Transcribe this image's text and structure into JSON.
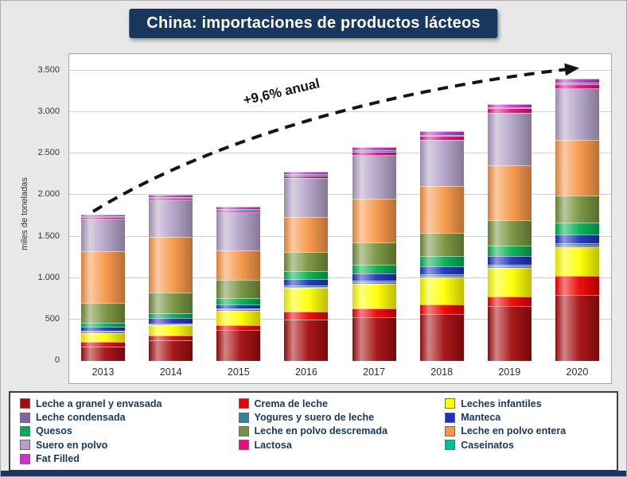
{
  "colors": {
    "title_bg": "#17375E",
    "frame_bg": "#E8E8E8",
    "arrow": "#141414",
    "legend_text": "#17375E"
  },
  "chart_data": {
    "type": "bar",
    "stacked": true,
    "title": "China: importaciones de productos lácteos",
    "annotation": "+9,6% anual",
    "xlabel": "",
    "ylabel": "miles de toneladas",
    "ylim": [
      0,
      3700
    ],
    "ytick_values": [
      0,
      500,
      1000,
      1500,
      2000,
      2500,
      3000,
      3500
    ],
    "ytick_labels": [
      "0",
      "500",
      "1.000",
      "1.500",
      "2.000",
      "2.500",
      "3.000",
      "3.500"
    ],
    "grid": true,
    "legend_position": "bottom",
    "categories": [
      "2013",
      "2014",
      "2015",
      "2016",
      "2017",
      "2018",
      "2019",
      "2020"
    ],
    "series": [
      {
        "name": "Leche a granel y envasada",
        "color": "#A30B0E",
        "values": [
          170,
          250,
          370,
          500,
          530,
          570,
          660,
          800
        ]
      },
      {
        "name": "Crema de leche",
        "color": "#EE0000",
        "values": [
          60,
          60,
          60,
          90,
          100,
          110,
          120,
          230
        ]
      },
      {
        "name": "Leches infantiles",
        "color": "#FFFF00",
        "values": [
          110,
          120,
          175,
          290,
          300,
          330,
          345,
          340
        ]
      },
      {
        "name": "Leche condensada",
        "color": "#8064A2",
        "values": [
          15,
          15,
          15,
          15,
          15,
          15,
          15,
          20
        ]
      },
      {
        "name": "Yogures y suero de leche",
        "color": "#31859C",
        "values": [
          10,
          10,
          10,
          15,
          20,
          25,
          25,
          25
        ]
      },
      {
        "name": "Manteca",
        "color": "#2030C0",
        "values": [
          50,
          60,
          55,
          80,
          90,
          95,
          100,
          110
        ]
      },
      {
        "name": "Quesos",
        "color": "#00B050",
        "values": [
          50,
          60,
          75,
          95,
          110,
          120,
          130,
          140
        ]
      },
      {
        "name": "Leche en polvo descremada",
        "color": "#76923C",
        "values": [
          235,
          250,
          220,
          230,
          260,
          280,
          300,
          330
        ]
      },
      {
        "name": "Leche en polvo entera",
        "color": "#F79646",
        "values": [
          620,
          670,
          350,
          420,
          530,
          560,
          660,
          670
        ]
      },
      {
        "name": "Suero en polvo",
        "color": "#B2A1C7",
        "values": [
          400,
          450,
          460,
          470,
          530,
          560,
          640,
          620
        ]
      },
      {
        "name": "Lactosa",
        "color": "#FF0080",
        "values": [
          15,
          20,
          25,
          30,
          40,
          45,
          50,
          55
        ]
      },
      {
        "name": "Caseinatos",
        "color": "#00BF8F",
        "values": [
          10,
          15,
          15,
          15,
          15,
          15,
          15,
          15
        ]
      },
      {
        "name": "Fat Filled",
        "color": "#CC33CC",
        "values": [
          15,
          20,
          30,
          30,
          40,
          45,
          40,
          45
        ]
      }
    ],
    "totals": [
      1760,
      2000,
      1860,
      2280,
      2580,
      2770,
      3100,
      3400
    ]
  }
}
